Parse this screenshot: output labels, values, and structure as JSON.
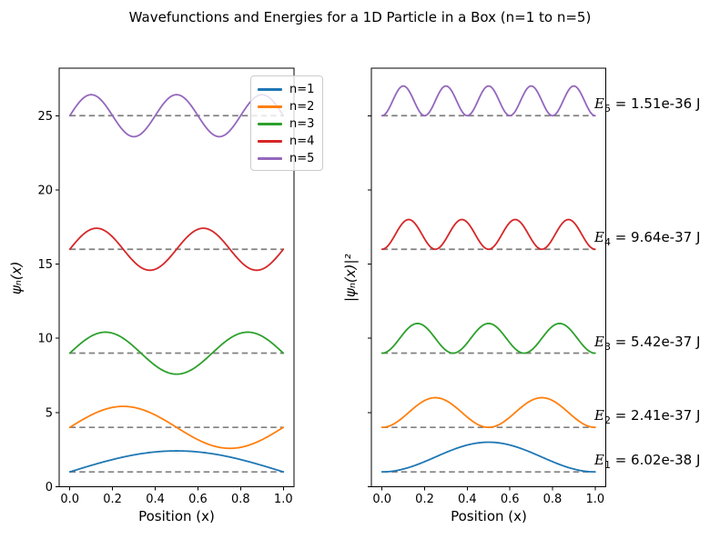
{
  "title": "Wavefunctions and Energies for a 1D Particle in a Box (n=1 to n=5)",
  "colors": {
    "background": "#ffffff",
    "text": "#000000",
    "axes": "#000000",
    "baseline_dash": "#808080",
    "legend_border": "#cccccc",
    "series": [
      "#1f77b4",
      "#ff7f0e",
      "#2ca02c",
      "#d62728",
      "#9467bd"
    ]
  },
  "chart_data": [
    {
      "type": "line",
      "title": "",
      "xlabel": "Position (x)",
      "ylabel": "ψₙ(x)",
      "xlim": [
        -0.05,
        1.05
      ],
      "ylim": [
        0,
        28.2
      ],
      "xticks": [
        0.0,
        0.2,
        0.4,
        0.6,
        0.8,
        1.0
      ],
      "xtick_labels": [
        "0.0",
        "0.2",
        "0.4",
        "0.6",
        "0.8",
        "1.0"
      ],
      "yticks": [
        0,
        5,
        10,
        15,
        20,
        25
      ],
      "ytick_labels": [
        "0",
        "5",
        "10",
        "15",
        "20",
        "25"
      ],
      "show_ytick_labels": true,
      "grid": false,
      "function": "y = n² + √2·sin(nπx) for x in [0,1], offset by energy level n²",
      "series": [
        {
          "label": "n=1",
          "n": 1,
          "offset": 1,
          "amplitude": 1.4142,
          "power": 1,
          "color": "#1f77b4"
        },
        {
          "label": "n=2",
          "n": 2,
          "offset": 4,
          "amplitude": 1.4142,
          "power": 1,
          "color": "#ff7f0e"
        },
        {
          "label": "n=3",
          "n": 3,
          "offset": 9,
          "amplitude": 1.4142,
          "power": 1,
          "color": "#2ca02c"
        },
        {
          "label": "n=4",
          "n": 4,
          "offset": 16,
          "amplitude": 1.4142,
          "power": 1,
          "color": "#d62728"
        },
        {
          "label": "n=5",
          "n": 5,
          "offset": 25,
          "amplitude": 1.4142,
          "power": 1,
          "color": "#9467bd"
        }
      ],
      "baselines": {
        "values": [
          1,
          4,
          9,
          16,
          25
        ],
        "color": "#808080",
        "style": "dashed"
      },
      "legend": {
        "position": "upper right",
        "entries": [
          {
            "label": "n=1",
            "color": "#1f77b4"
          },
          {
            "label": "n=2",
            "color": "#ff7f0e"
          },
          {
            "label": "n=3",
            "color": "#2ca02c"
          },
          {
            "label": "n=4",
            "color": "#d62728"
          },
          {
            "label": "n=5",
            "color": "#9467bd"
          }
        ]
      }
    },
    {
      "type": "line",
      "title": "",
      "xlabel": "Position (x)",
      "ylabel": "|ψₙ(x)|²",
      "xlim": [
        -0.05,
        1.05
      ],
      "ylim": [
        0,
        28.2
      ],
      "xticks": [
        0.0,
        0.2,
        0.4,
        0.6,
        0.8,
        1.0
      ],
      "xtick_labels": [
        "0.0",
        "0.2",
        "0.4",
        "0.6",
        "0.8",
        "1.0"
      ],
      "yticks": [
        0,
        5,
        10,
        15,
        20,
        25
      ],
      "ytick_labels": [],
      "show_ytick_labels": false,
      "grid": false,
      "function": "y = n² + 2·sin²(nπx) for x in [0,1], offset by energy level n²",
      "series": [
        {
          "label": "n=1",
          "n": 1,
          "offset": 1,
          "amplitude": 2,
          "power": 2,
          "color": "#1f77b4"
        },
        {
          "label": "n=2",
          "n": 2,
          "offset": 4,
          "amplitude": 2,
          "power": 2,
          "color": "#ff7f0e"
        },
        {
          "label": "n=3",
          "n": 3,
          "offset": 9,
          "amplitude": 2,
          "power": 2,
          "color": "#2ca02c"
        },
        {
          "label": "n=4",
          "n": 4,
          "offset": 16,
          "amplitude": 2,
          "power": 2,
          "color": "#d62728"
        },
        {
          "label": "n=5",
          "n": 5,
          "offset": 25,
          "amplitude": 2,
          "power": 2,
          "color": "#9467bd"
        }
      ],
      "baselines": {
        "values": [
          1,
          4,
          9,
          16,
          25
        ],
        "color": "#808080",
        "style": "dashed"
      },
      "annotations": [
        {
          "symbol": "E",
          "sub": "1",
          "value": "6.02e-38 J",
          "y": 1.8
        },
        {
          "symbol": "E",
          "sub": "2",
          "value": "2.41e-37 J",
          "y": 4.8
        },
        {
          "symbol": "E",
          "sub": "3",
          "value": "5.42e-37 J",
          "y": 9.8
        },
        {
          "symbol": "E",
          "sub": "4",
          "value": "9.64e-37 J",
          "y": 16.8
        },
        {
          "symbol": "E",
          "sub": "5",
          "value": "1.51e-36 J",
          "y": 25.8
        }
      ]
    }
  ]
}
